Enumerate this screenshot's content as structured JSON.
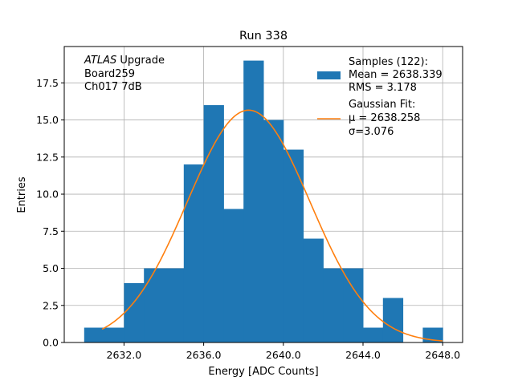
{
  "chart_data": {
    "type": "bar",
    "title": "Run 338",
    "xlabel": "Energy [ADC Counts]",
    "ylabel": "Entries",
    "xlim": [
      2629.0,
      2649.0
    ],
    "ylim": [
      0,
      19.95
    ],
    "xticks": [
      2632.0,
      2636.0,
      2640.0,
      2644.0,
      2648.0
    ],
    "xtick_labels": [
      "2632.0",
      "2636.0",
      "2640.0",
      "2644.0",
      "2648.0"
    ],
    "yticks": [
      0,
      2.5,
      5,
      7.5,
      10,
      12.5,
      15,
      17.5
    ],
    "ytick_labels": [
      "0.0",
      "2.5",
      "5.0",
      "7.5",
      "10.0",
      "12.5",
      "15.0",
      "17.5"
    ],
    "grid": true,
    "legend_position": "top-right",
    "annotation": {
      "prefix": "ATLAS",
      "line1_rest": " Upgrade",
      "line2": " Board259",
      "line3": " Ch017 7dB"
    },
    "histogram": {
      "name": "Samples (122):",
      "stats": [
        " Mean = 2638.339",
        " RMS = 3.178"
      ],
      "color": "#1f77b4",
      "bin_edges": [
        2630,
        2631,
        2632,
        2633,
        2634,
        2635,
        2636,
        2637,
        2638,
        2639,
        2640,
        2641,
        2642,
        2643,
        2644,
        2645,
        2646,
        2647,
        2648
      ],
      "counts": [
        1,
        1,
        4,
        5,
        5,
        12,
        16,
        9,
        19,
        15,
        13,
        7,
        5,
        5,
        1,
        3,
        0,
        1
      ]
    },
    "fit": {
      "name": "Gaussian Fit:",
      "mu_label": " μ = 2638.258",
      "sigma_label": " σ=3.076",
      "color": "#ff7f0e",
      "mu": 2638.258,
      "sigma": 3.076,
      "amplitude": 15.66,
      "x_range": [
        2630.9,
        2648.0
      ]
    }
  }
}
